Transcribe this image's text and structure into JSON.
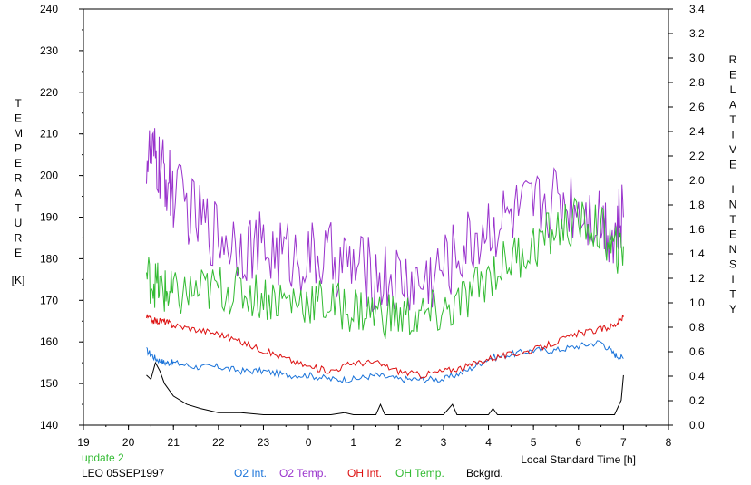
{
  "chart_data": {
    "type": "line",
    "left_axis": {
      "label_letters": [
        "T",
        "E",
        "M",
        "P",
        "E",
        "R",
        "A",
        "T",
        "U",
        "R",
        "E"
      ],
      "unit": "[K]",
      "ylim": [
        140,
        240
      ],
      "ticks": [
        140,
        150,
        160,
        170,
        180,
        190,
        200,
        210,
        220,
        230,
        240
      ]
    },
    "right_axis": {
      "label_letters_1": [
        "R",
        "E",
        "L",
        "A",
        "T",
        "I",
        "V",
        "E"
      ],
      "label_letters_2": [
        "I",
        "N",
        "T",
        "E",
        "N",
        "S",
        "I",
        "T",
        "Y"
      ],
      "ylim": [
        0.0,
        3.4
      ],
      "ticks": [
        "0.0",
        "0.2",
        "0.4",
        "0.6",
        "0.8",
        "1.0",
        "1.2",
        "1.4",
        "1.6",
        "1.8",
        "2.0",
        "2.2",
        "2.4",
        "2.6",
        "2.8",
        "3.0",
        "3.2",
        "3.4"
      ]
    },
    "x_axis": {
      "label": "Local Standard Time [h]",
      "range_hours": [
        19,
        32
      ],
      "tick_labels": [
        "19",
        "20",
        "21",
        "22",
        "23",
        "0",
        "1",
        "2",
        "3",
        "4",
        "5",
        "6",
        "7",
        "8"
      ]
    },
    "series": [
      {
        "name": "O2 Int.",
        "color": "#1a73d9",
        "axis": "left",
        "x": [
          20.4,
          20.6,
          20.8,
          21.0,
          21.5,
          22.0,
          22.5,
          23.0,
          23.5,
          24.0,
          24.5,
          25.0,
          25.5,
          26.0,
          26.5,
          27.0,
          27.5,
          28.0,
          28.5,
          29.0,
          29.5,
          30.0,
          30.5,
          30.8,
          31.0
        ],
        "y": [
          158,
          156,
          155,
          155,
          154,
          154,
          153,
          153,
          152,
          152,
          151,
          151,
          152,
          151,
          151,
          151,
          153,
          156,
          157,
          158,
          158,
          159,
          160,
          157,
          156
        ]
      },
      {
        "name": "O2 Temp.",
        "color": "#9933cc",
        "axis": "left",
        "x": [
          20.4,
          20.6,
          20.8,
          21.0,
          21.5,
          22.0,
          22.5,
          23.0,
          23.5,
          24.0,
          24.5,
          25.0,
          25.5,
          26.0,
          26.5,
          27.0,
          27.5,
          28.0,
          28.5,
          29.0,
          29.5,
          30.0,
          30.5,
          30.8,
          31.0
        ],
        "y": [
          205,
          203,
          200,
          196,
          190,
          186,
          184,
          182,
          181,
          180,
          180,
          178,
          176,
          175,
          174,
          178,
          183,
          188,
          190,
          192,
          195,
          193,
          190,
          186,
          190
        ]
      },
      {
        "name": "OH Int.",
        "color": "#dd1111",
        "axis": "left",
        "x": [
          20.4,
          20.6,
          20.8,
          21.0,
          21.5,
          22.0,
          22.5,
          23.0,
          23.5,
          24.0,
          24.5,
          25.0,
          25.5,
          26.0,
          26.5,
          27.0,
          27.5,
          28.0,
          28.5,
          29.0,
          29.5,
          30.0,
          30.5,
          30.8,
          31.0
        ],
        "y": [
          166,
          165,
          165,
          164,
          163,
          162,
          160,
          158,
          156,
          154,
          153,
          155,
          155,
          153,
          152,
          153,
          154,
          156,
          157,
          158,
          160,
          162,
          163,
          164,
          166
        ]
      },
      {
        "name": "OH Temp.",
        "color": "#33bb33",
        "axis": "left",
        "x": [
          20.4,
          20.6,
          20.8,
          21.0,
          21.5,
          22.0,
          22.5,
          23.0,
          23.5,
          24.0,
          24.5,
          25.0,
          25.5,
          26.0,
          26.5,
          27.0,
          27.5,
          28.0,
          28.5,
          29.0,
          29.5,
          30.0,
          30.5,
          30.8,
          31.0
        ],
        "y": [
          176,
          174,
          172,
          171,
          172,
          173,
          172,
          171,
          170,
          170,
          169,
          168,
          167,
          166,
          166,
          167,
          170,
          176,
          180,
          183,
          187,
          189,
          187,
          182,
          183
        ]
      },
      {
        "name": "Bckgrd.",
        "color": "#000000",
        "axis": "left",
        "x": [
          20.4,
          20.5,
          20.6,
          20.7,
          20.8,
          21.0,
          21.3,
          21.6,
          22.0,
          22.5,
          23.0,
          23.5,
          24.0,
          24.5,
          24.8,
          25.0,
          25.5,
          25.6,
          25.7,
          26.0,
          26.5,
          27.0,
          27.2,
          27.3,
          27.5,
          28.0,
          28.1,
          28.2,
          28.5,
          29.0,
          29.5,
          30.0,
          30.5,
          30.8,
          30.95,
          31.0
        ],
        "y": [
          152,
          151,
          155,
          153,
          150,
          147,
          145,
          144,
          143,
          143,
          142.5,
          142.5,
          142.5,
          142.5,
          143,
          142.5,
          142.5,
          145,
          142.5,
          142.5,
          142.5,
          142.5,
          145,
          142.5,
          142.5,
          142.5,
          144,
          142.5,
          142.5,
          142.5,
          142.5,
          142.5,
          142.5,
          142.5,
          146,
          152
        ]
      }
    ]
  },
  "annotations": {
    "update": "update 2",
    "station": "LEO 05SEP1997"
  },
  "colors": {
    "update": "#33bb33"
  }
}
